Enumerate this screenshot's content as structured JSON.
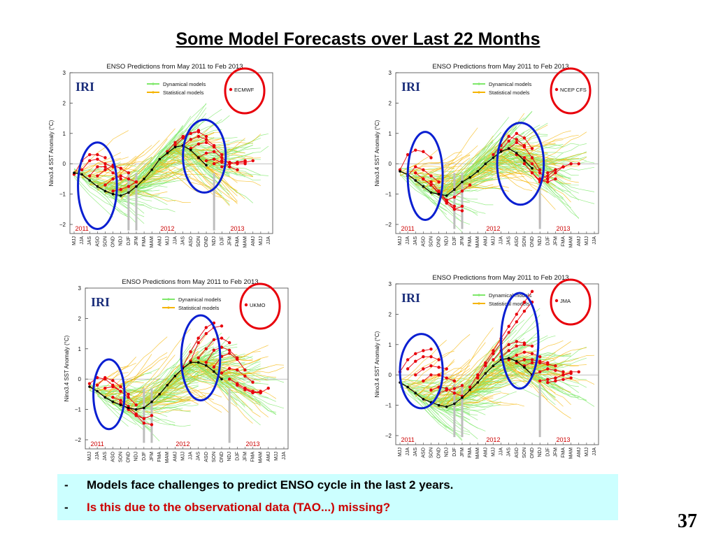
{
  "slide": {
    "title": "Some Model Forecasts over Last 22 Months",
    "page_number": "37",
    "bullets": [
      {
        "marker": "-",
        "text": "Models face challenges to predict ENSO cycle in the last 2 years.",
        "color": "#000000"
      },
      {
        "marker": "-",
        "text": "Is this due to the observational data (TAO...) missing?",
        "color": "#cc0000"
      }
    ]
  },
  "colors": {
    "dynamical": "#7ee86a",
    "statistical": "#f5b400",
    "highlight_model": "#e8000b",
    "observed": "#000000",
    "circle_red": "#e8000b",
    "circle_blue": "#0a1fd1",
    "year_label": "#cc0000"
  },
  "chart_data": [
    {
      "type": "line",
      "title": "ENSO Predictions from May 2011 to Feb 2013",
      "logo": "IRI",
      "ylabel": "Nino3.4 SST Anomaly (°C)",
      "ylim": [
        -2.3,
        3
      ],
      "yticks": [
        -2,
        -1,
        0,
        1,
        2,
        3
      ],
      "x": [
        "MJJ",
        "JJA",
        "JAS",
        "ASO",
        "SON",
        "OND",
        "NDJ",
        "DJF",
        "JFM",
        "FMA",
        "MAM",
        "AMJ",
        "MJJ",
        "JJA",
        "JAS",
        "ASO",
        "SON",
        "OND",
        "NDJ",
        "DJF",
        "JFM",
        "FMA",
        "MAM",
        "AMJ",
        "MJJ",
        "JJA"
      ],
      "year_labels": [
        {
          "text": "2011",
          "at": 1
        },
        {
          "text": "2012",
          "at": 12
        },
        {
          "text": "2013",
          "at": 21
        }
      ],
      "legend": [
        {
          "name": "Dynamical models",
          "color": "#7ee86a"
        },
        {
          "name": "Statistical models",
          "color": "#f5b400"
        },
        {
          "name": "ECMWF",
          "color": "#e8000b"
        }
      ],
      "highlight_model": "ECMWF",
      "observed": [
        -0.3,
        -0.35,
        -0.55,
        -0.75,
        -0.9,
        -1.0,
        -1.05,
        -0.95,
        -0.75,
        -0.5,
        -0.2,
        0.15,
        0.35,
        0.55,
        0.6,
        0.45,
        0.2,
        -0.05
      ],
      "highlight_paths": [
        {
          "start": 0,
          "values": [
            -0.35,
            0.1,
            0.3,
            0.3,
            0.2
          ]
        },
        {
          "start": 1,
          "values": [
            -0.2,
            0.1,
            0.15,
            0.0,
            -0.1
          ]
        },
        {
          "start": 2,
          "values": [
            -0.4,
            -0.1,
            -0.1,
            -0.3,
            -0.5
          ]
        },
        {
          "start": 3,
          "values": [
            -0.4,
            -0.2,
            -0.05,
            -0.15,
            -0.3
          ]
        },
        {
          "start": 4,
          "values": [
            -0.7,
            -0.5,
            -0.4,
            -0.5,
            -0.6
          ]
        },
        {
          "start": 5,
          "values": [
            -0.9,
            -0.85,
            -0.75,
            -0.6
          ]
        },
        {
          "start": 12,
          "values": [
            0.4,
            0.7,
            0.9,
            1.0,
            1.1
          ]
        },
        {
          "start": 13,
          "values": [
            0.6,
            0.85,
            1.0,
            1.05,
            0.9
          ]
        },
        {
          "start": 14,
          "values": [
            0.6,
            0.8,
            0.9,
            0.8,
            0.6
          ]
        },
        {
          "start": 15,
          "values": [
            0.5,
            0.65,
            0.7,
            0.55,
            0.3
          ]
        },
        {
          "start": 16,
          "values": [
            0.2,
            0.35,
            0.4,
            0.2,
            0.0
          ]
        },
        {
          "start": 17,
          "values": [
            0.1,
            0.15,
            0.05,
            -0.1,
            -0.2
          ]
        },
        {
          "start": 18,
          "values": [
            0.0,
            0.1,
            0.05,
            0.0,
            0.0
          ]
        },
        {
          "start": 19,
          "values": [
            -0.1,
            0.0,
            0.05,
            0.1
          ]
        },
        {
          "start": 20,
          "values": [
            0.0,
            0.05,
            0.05,
            0.1
          ]
        }
      ],
      "blue_circles": [
        {
          "x": [
            0.5,
            5.5
          ],
          "y": [
            -2.15,
            0.7
          ]
        },
        {
          "x": [
            14.0,
            19.5
          ],
          "y": [
            -0.95,
            1.45
          ]
        }
      ]
    },
    {
      "type": "line",
      "title": "ENSO Predictions from May 2011 to Feb 2013",
      "logo": "IRI",
      "ylabel": "Nino3.4 SST Anomaly (°C)",
      "ylim": [
        -2.3,
        3
      ],
      "yticks": [
        -2,
        -1,
        0,
        1,
        2,
        3
      ],
      "x": [
        "MJJ",
        "JJA",
        "JAS",
        "ASO",
        "SON",
        "OND",
        "NDJ",
        "DJF",
        "JFM",
        "FMA",
        "MAM",
        "AMJ",
        "MJJ",
        "JJA",
        "JAS",
        "ASO",
        "SON",
        "OND",
        "NDJ",
        "DJF",
        "JFM",
        "FMA",
        "MAM",
        "AMJ",
        "MJJ",
        "JJA"
      ],
      "year_labels": [
        {
          "text": "2011",
          "at": 1
        },
        {
          "text": "2012",
          "at": 12
        },
        {
          "text": "2013",
          "at": 21
        }
      ],
      "legend": [
        {
          "name": "Dynamical models",
          "color": "#7ee86a"
        },
        {
          "name": "Statistical models",
          "color": "#f5b400"
        },
        {
          "name": "NCEP CFS",
          "color": "#e8000b"
        }
      ],
      "highlight_model": "NCEP CFS",
      "observed": [
        -0.25,
        -0.35,
        -0.55,
        -0.75,
        -0.95,
        -1.0,
        -1.05,
        -0.85,
        -0.6,
        -0.45,
        -0.25,
        0.0,
        0.2,
        0.4,
        0.5,
        0.35,
        0.1,
        -0.15
      ],
      "highlight_paths": [
        {
          "start": 0,
          "values": [
            -0.2,
            0.3,
            0.45,
            0.4,
            0.2
          ]
        },
        {
          "start": 1,
          "values": [
            -0.4,
            -0.1,
            -0.2,
            -0.4,
            -0.6
          ]
        },
        {
          "start": 2,
          "values": [
            -0.3,
            -0.5,
            -0.7,
            -1.0,
            -1.2
          ]
        },
        {
          "start": 3,
          "values": [
            -0.5,
            -0.7,
            -0.95,
            -1.25,
            -1.4
          ]
        },
        {
          "start": 4,
          "values": [
            -0.6,
            -0.9,
            -1.2,
            -1.5,
            -1.55
          ]
        },
        {
          "start": 5,
          "values": [
            -1.0,
            -1.3,
            -1.5,
            -1.4
          ]
        },
        {
          "start": 6,
          "values": [
            -1.2,
            -1.1,
            -0.9,
            -0.7
          ]
        },
        {
          "start": 12,
          "values": [
            0.3,
            0.6,
            0.9,
            0.8,
            0.6
          ]
        },
        {
          "start": 13,
          "values": [
            0.45,
            0.75,
            1.0,
            0.85,
            0.5
          ]
        },
        {
          "start": 14,
          "values": [
            0.5,
            0.7,
            0.55,
            0.2,
            -0.2
          ]
        },
        {
          "start": 15,
          "values": [
            0.3,
            0.2,
            0.0,
            -0.3,
            -0.5
          ]
        },
        {
          "start": 16,
          "values": [
            0.0,
            -0.3,
            -0.55,
            -0.6,
            -0.5
          ]
        },
        {
          "start": 17,
          "values": [
            -0.3,
            -0.6,
            -0.5,
            -0.3,
            -0.1
          ]
        },
        {
          "start": 18,
          "values": [
            -0.5,
            -0.4,
            -0.2,
            -0.1,
            0.0
          ]
        },
        {
          "start": 19,
          "values": [
            -0.3,
            -0.2,
            -0.1,
            0.0,
            0.0
          ]
        }
      ],
      "blue_circles": [
        {
          "x": [
            1.0,
            5.5
          ],
          "y": [
            -1.85,
            1.05
          ]
        },
        {
          "x": [
            12.5,
            18.5
          ],
          "y": [
            -1.35,
            1.35
          ]
        }
      ]
    },
    {
      "type": "line",
      "title": "ENSO Predictions from May 2011 to Feb 2013",
      "logo": "IRI",
      "ylabel": "Nino3.4 SST Anomaly (°C)",
      "ylim": [
        -2.3,
        3
      ],
      "yticks": [
        -2,
        -1,
        0,
        1,
        2,
        3
      ],
      "x": [
        "MJJ",
        "JJA",
        "JAS",
        "ASO",
        "SON",
        "OND",
        "NDJ",
        "DJF",
        "JFM",
        "FMA",
        "MAM",
        "AMJ",
        "MJJ",
        "JJA",
        "JAS",
        "ASO",
        "SON",
        "OND",
        "NDJ",
        "DJF",
        "JFM",
        "FMA",
        "MAM",
        "AMJ",
        "MJJ",
        "JJA"
      ],
      "year_labels": [
        {
          "text": "2011",
          "at": 1
        },
        {
          "text": "2012",
          "at": 12
        },
        {
          "text": "2013",
          "at": 21
        }
      ],
      "legend": [
        {
          "name": "Dynamical models",
          "color": "#7ee86a"
        },
        {
          "name": "Statistical models",
          "color": "#f5b400"
        },
        {
          "name": "UKMO",
          "color": "#e8000b"
        }
      ],
      "highlight_model": "UKMO",
      "observed": [
        -0.25,
        -0.4,
        -0.6,
        -0.75,
        -0.85,
        -0.95,
        -1.0,
        -0.95,
        -0.75,
        -0.5,
        -0.2,
        0.1,
        0.35,
        0.55,
        0.55,
        0.45,
        0.25,
        0.0
      ],
      "highlight_paths": [
        {
          "start": 0,
          "values": [
            -0.15,
            0.05,
            0.0,
            -0.2,
            -0.4
          ]
        },
        {
          "start": 1,
          "values": [
            -0.2,
            0.05,
            -0.05,
            -0.25,
            -0.5
          ]
        },
        {
          "start": 2,
          "values": [
            -0.3,
            -0.25,
            -0.4,
            -0.6,
            -0.85
          ]
        },
        {
          "start": 3,
          "values": [
            -0.6,
            -0.7,
            -0.9,
            -1.15,
            -1.3
          ]
        },
        {
          "start": 4,
          "values": [
            -0.8,
            -1.0,
            -1.2,
            -1.45,
            -1.5
          ]
        },
        {
          "start": 5,
          "values": [
            -1.0,
            -1.2,
            -1.3,
            -1.2
          ]
        },
        {
          "start": 12,
          "values": [
            0.4,
            0.9,
            1.35,
            1.7,
            1.85
          ]
        },
        {
          "start": 13,
          "values": [
            0.6,
            1.2,
            1.5,
            1.7,
            1.75
          ]
        },
        {
          "start": 14,
          "values": [
            0.7,
            1.0,
            1.3,
            1.35,
            1.2
          ]
        },
        {
          "start": 15,
          "values": [
            0.55,
            0.95,
            1.05,
            0.95,
            0.7
          ]
        },
        {
          "start": 16,
          "values": [
            0.4,
            0.75,
            0.85,
            0.65,
            0.3
          ]
        },
        {
          "start": 17,
          "values": [
            0.2,
            0.35,
            0.3,
            0.1,
            -0.1
          ]
        },
        {
          "start": 18,
          "values": [
            0.0,
            -0.15,
            -0.3,
            -0.4,
            -0.45
          ]
        },
        {
          "start": 19,
          "values": [
            -0.2,
            -0.35,
            -0.45,
            -0.4
          ]
        },
        {
          "start": 20,
          "values": [
            -0.3,
            -0.45,
            -0.45,
            -0.3
          ]
        }
      ],
      "blue_circles": [
        {
          "x": [
            0.5,
            4.5
          ],
          "y": [
            -1.65,
            0.65
          ]
        },
        {
          "x": [
            11.8,
            16.8
          ],
          "y": [
            -0.7,
            2.1
          ]
        }
      ]
    },
    {
      "type": "line",
      "title": "ENSO Predictions from May 2011 to Feb 2013",
      "logo": "IRI",
      "ylabel": "Nino3.4 SST Anomaly (°C)",
      "ylim": [
        -2.3,
        3
      ],
      "yticks": [
        -2,
        -1,
        0,
        1,
        2,
        3
      ],
      "x": [
        "MJJ",
        "JJA",
        "JAS",
        "ASO",
        "SON",
        "OND",
        "NDJ",
        "DJF",
        "JFM",
        "FMA",
        "MAM",
        "AMJ",
        "MJJ",
        "JJA",
        "JAS",
        "ASO",
        "SON",
        "OND",
        "NDJ",
        "DJF",
        "JFM",
        "FMA",
        "MAM",
        "AMJ",
        "MJJ",
        "JJA"
      ],
      "year_labels": [
        {
          "text": "2011",
          "at": 1
        },
        {
          "text": "2012",
          "at": 12
        },
        {
          "text": "2013",
          "at": 21
        }
      ],
      "legend": [
        {
          "name": "Dynamical models",
          "color": "#7ee86a"
        },
        {
          "name": "Statistical models",
          "color": "#f5b400"
        },
        {
          "name": "JMA",
          "color": "#e8000b"
        }
      ],
      "highlight_model": "JMA",
      "observed": [
        -0.25,
        -0.4,
        -0.6,
        -0.8,
        -0.9,
        -1.0,
        -1.05,
        -0.95,
        -0.75,
        -0.5,
        -0.25,
        0.05,
        0.3,
        0.5,
        0.55,
        0.45,
        0.25,
        0.0
      ],
      "highlight_paths": [
        {
          "start": 0,
          "values": [
            0.1,
            0.5,
            0.7,
            0.8,
            0.85
          ]
        },
        {
          "start": 1,
          "values": [
            0.2,
            0.45,
            0.6,
            0.6,
            0.5
          ]
        },
        {
          "start": 2,
          "values": [
            0.0,
            0.2,
            0.3,
            0.25,
            0.2
          ]
        },
        {
          "start": 3,
          "values": [
            -0.2,
            0.0,
            0.0,
            -0.1,
            -0.2
          ]
        },
        {
          "start": 4,
          "values": [
            -0.5,
            -0.4,
            -0.45,
            -0.6,
            -0.7
          ]
        },
        {
          "start": 5,
          "values": [
            -0.6,
            -0.5,
            -0.45,
            -0.35
          ]
        },
        {
          "start": 9,
          "values": [
            -0.4,
            0.0,
            0.4,
            0.8,
            1.2,
            1.6,
            2.0,
            2.4,
            2.75
          ]
        },
        {
          "start": 10,
          "values": [
            -0.1,
            0.3,
            0.7,
            1.05,
            1.4,
            1.75,
            2.1,
            2.4
          ]
        },
        {
          "start": 12,
          "values": [
            0.5,
            0.8,
            1.0,
            1.1,
            1.05
          ]
        },
        {
          "start": 13,
          "values": [
            0.6,
            0.8,
            0.95,
            1.0,
            0.95
          ]
        },
        {
          "start": 14,
          "values": [
            0.5,
            0.65,
            0.75,
            0.7,
            0.6
          ]
        },
        {
          "start": 15,
          "values": [
            0.4,
            0.5,
            0.5,
            0.45,
            0.4
          ]
        },
        {
          "start": 16,
          "values": [
            0.3,
            0.4,
            0.4,
            0.35,
            0.3
          ]
        },
        {
          "start": 17,
          "values": [
            0.0,
            0.1,
            0.2,
            0.15,
            0.1
          ]
        },
        {
          "start": 18,
          "values": [
            -0.2,
            -0.15,
            -0.1,
            0.0,
            0.05
          ]
        },
        {
          "start": 19,
          "values": [
            -0.25,
            -0.2,
            -0.15,
            -0.1
          ]
        },
        {
          "start": 20,
          "values": [
            -0.1,
            0.0,
            0.1,
            0.1
          ]
        }
      ],
      "blue_circles": [
        {
          "x": [
            0.0,
            5.5
          ],
          "y": [
            -1.1,
            1.35
          ]
        },
        {
          "x": [
            13.0,
            17.8
          ],
          "y": [
            -0.45,
            2.7
          ]
        }
      ]
    }
  ]
}
